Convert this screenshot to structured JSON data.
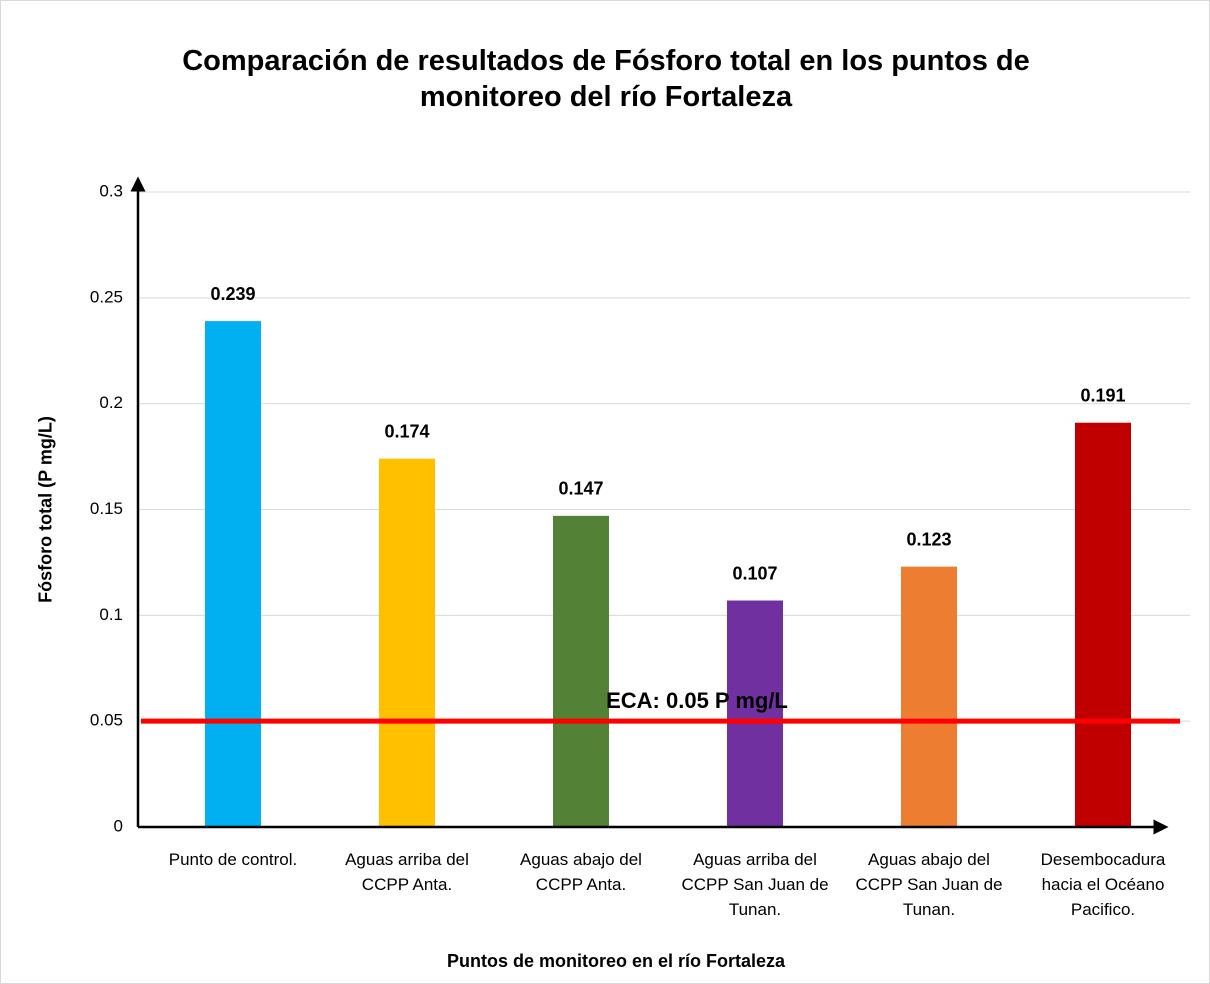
{
  "chart_data": {
    "type": "bar",
    "title": "Comparación de resultados de Fósforo total en los puntos de monitoreo del río Fortaleza",
    "x_label": "Puntos de monitoreo en el río Fortaleza",
    "y_label": "Fósforo total (P mg/L)",
    "categories": [
      "Punto de control.",
      "Aguas arriba del CCPP Anta.",
      "Aguas abajo del CCPP Anta.",
      "Aguas arriba del CCPP San Juan de Tunan.",
      "Aguas abajo del CCPP San Juan de Tunan.",
      "Desembocadura hacia el Océano Pacifico."
    ],
    "values": [
      0.239,
      0.174,
      0.147,
      0.107,
      0.123,
      0.191
    ],
    "colors": [
      "#00b0f0",
      "#ffc000",
      "#538135",
      "#7030a0",
      "#ed7d31",
      "#c00000"
    ],
    "ylim": [
      0,
      0.3
    ],
    "yticks": [
      0,
      0.05,
      0.1,
      0.15,
      0.2,
      0.25,
      0.3
    ],
    "grid": true,
    "reference_line": {
      "value": 0.05,
      "label": "ECA: 0.05 P mg/L",
      "color": "#ff0000"
    }
  }
}
